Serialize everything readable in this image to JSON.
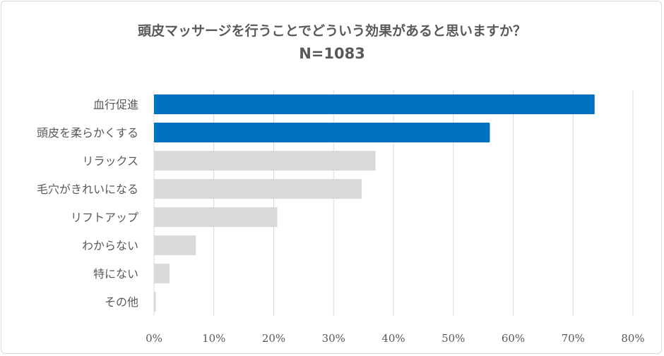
{
  "chart_data": {
    "type": "bar",
    "orientation": "horizontal",
    "title": "頭皮マッサージを行うことでどういう効果があると思いますか？",
    "subtitle": "N=1083",
    "categories": [
      "血行促進",
      "頭皮を柔らかくする",
      "リラックス",
      "毛穴がきれいになる",
      "リフトアップ",
      "わからない",
      "特にない",
      "その他"
    ],
    "values": [
      73.6,
      56.1,
      37.0,
      34.7,
      20.6,
      7.0,
      2.6,
      0.3
    ],
    "highlight": [
      true,
      true,
      false,
      false,
      false,
      false,
      false,
      false
    ],
    "xlim": [
      0,
      80
    ],
    "xticks": [
      "0%",
      "10%",
      "20%",
      "30%",
      "40%",
      "50%",
      "60%",
      "70%",
      "80%"
    ],
    "grid": true,
    "colors": {
      "highlight": "#0070c0",
      "normal": "#d9d9d9",
      "grid": "#d9d9d9",
      "text": "#595959"
    }
  }
}
